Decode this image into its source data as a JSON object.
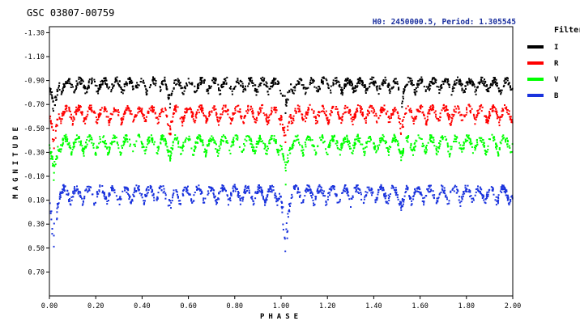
{
  "chart_data": {
    "type": "scatter",
    "title": "GSC 03807-00759",
    "subtitle": "H0: 2450000.5, Period: 1.305545",
    "xlabel": "PHASE",
    "ylabel": "MAGNITUDE",
    "xlim": [
      0.0,
      2.0
    ],
    "ylim": [
      -1.35,
      0.9
    ],
    "y_inverted": true,
    "x_ticks": [
      "0.00",
      "0.20",
      "0.40",
      "0.60",
      "0.80",
      "1.00",
      "1.20",
      "1.40",
      "1.60",
      "1.80",
      "2.00"
    ],
    "y_ticks": [
      "-1.30",
      "-1.10",
      "-0.90",
      "-0.70",
      "-0.50",
      "-0.30",
      "-0.10",
      "0.10",
      "0.30",
      "0.50",
      "0.70"
    ],
    "legend_title": "Filter",
    "legend_position": "right",
    "series": [
      {
        "name": "I",
        "color": "#000000",
        "baseline": -0.9,
        "depth": 0.1,
        "primary_min": -0.6,
        "secondary_min": -0.65
      },
      {
        "name": "R",
        "color": "#ff0000",
        "baseline": -0.67,
        "depth": 0.12,
        "primary_min": -0.32,
        "secondary_min": -0.4
      },
      {
        "name": "V",
        "color": "#00ff00",
        "baseline": -0.42,
        "depth": 0.13,
        "primary_min": -0.03,
        "secondary_min": -0.2
      },
      {
        "name": "B",
        "color": "#1a33dd",
        "baseline": 0.0,
        "depth": 0.13,
        "primary_min": 0.58,
        "secondary_min": 0.22
      }
    ]
  }
}
